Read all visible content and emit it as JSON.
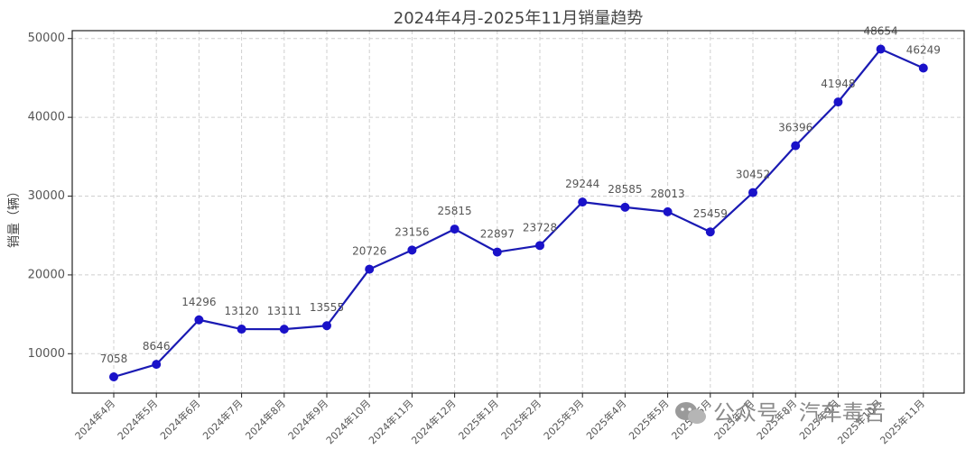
{
  "chart_data": {
    "type": "line",
    "title": "2024年4月-2025年11月销量趋势",
    "xlabel": "",
    "ylabel": "销量（辆）",
    "categories": [
      "2024年4月",
      "2024年5月",
      "2024年6月",
      "2024年7月",
      "2024年8月",
      "2024年9月",
      "2024年10月",
      "2024年11月",
      "2024年12月",
      "2025年1月",
      "2025年2月",
      "2025年3月",
      "2025年4月",
      "2025年5月",
      "2025年6月",
      "2025年7月",
      "2025年8月",
      "2025年9月",
      "2025年10月",
      "2025年11月"
    ],
    "series": [
      {
        "values": [
          7058,
          8646,
          14296,
          13120,
          13111,
          13555,
          20726,
          23156,
          25815,
          22897,
          23728,
          29244,
          28585,
          28013,
          25459,
          30452,
          36396,
          41948,
          48654,
          46249
        ]
      }
    ],
    "ylim": [
      5000,
      51000
    ],
    "yticks": [
      10000,
      20000,
      30000,
      40000,
      50000
    ],
    "grid": true,
    "colors": {
      "line": "#1a1ab3",
      "marker": "#1a12c9"
    }
  },
  "watermark": {
    "text": "公众号 · 汽车毒舌",
    "icon": "wechat-icon"
  }
}
